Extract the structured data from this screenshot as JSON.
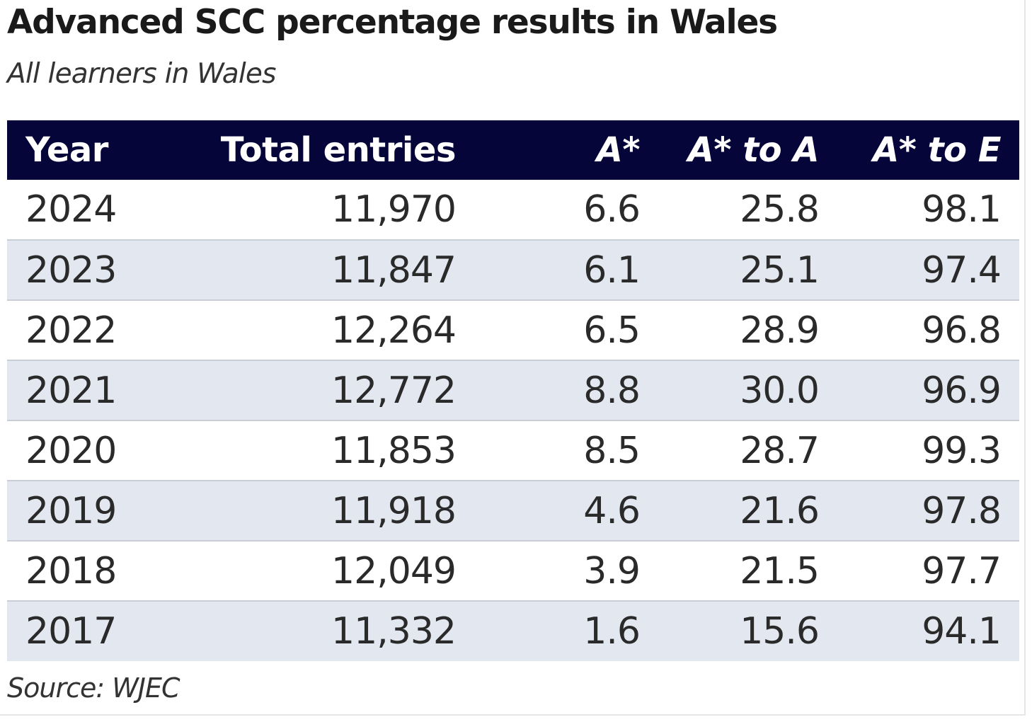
{
  "title": "Advanced SCC percentage results in Wales",
  "subtitle": "All learners in Wales",
  "source": "Source: WJEC",
  "colors": {
    "header_background": "#05053a",
    "header_text": "#ffffff",
    "alternate_row": "#e3e8f0",
    "row_divider": "#c9ced6"
  },
  "chart_data": {
    "type": "table",
    "title": "Advanced SCC percentage results in Wales",
    "subtitle": "All learners in Wales",
    "columns": [
      "Year",
      "Total entries",
      "A*",
      "A* to A",
      "A* to E"
    ],
    "rows": [
      [
        "2024",
        "11,970",
        "6.6",
        "25.8",
        "98.1"
      ],
      [
        "2023",
        "11,847",
        "6.1",
        "25.1",
        "97.4"
      ],
      [
        "2022",
        "12,264",
        "6.5",
        "28.9",
        "96.8"
      ],
      [
        "2021",
        "12,772",
        "8.8",
        "30.0",
        "96.9"
      ],
      [
        "2020",
        "11,853",
        "8.5",
        "28.7",
        "99.3"
      ],
      [
        "2019",
        "11,918",
        "4.6",
        "21.6",
        "97.8"
      ],
      [
        "2018",
        "12,049",
        "3.9",
        "21.5",
        "97.7"
      ],
      [
        "2017",
        "11,332",
        "1.6",
        "15.6",
        "94.1"
      ]
    ],
    "source": "Source: WJEC"
  }
}
